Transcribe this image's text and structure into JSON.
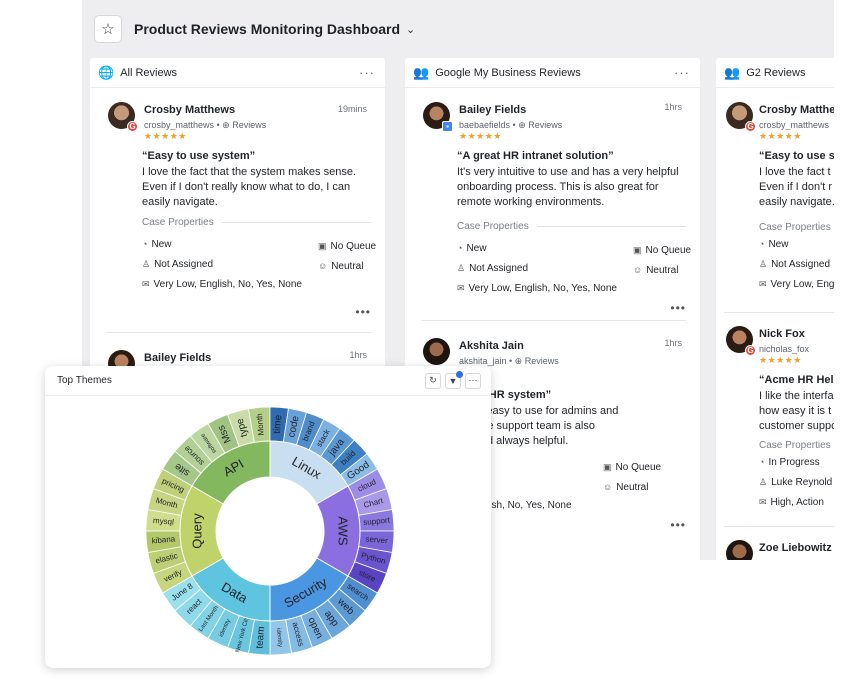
{
  "dashboard": {
    "title": "Product Reviews Monitoring Dashboard"
  },
  "columns": [
    {
      "title": "All Reviews",
      "cards": [
        {
          "name": "Crosby Matthews",
          "handle": "crosby_matthews",
          "source": "Reviews",
          "time": "19mins",
          "rating": 5,
          "review_title": "“Easy to use system”",
          "review_body": "I love the fact that the system makes sense. Even if I don't really know what to do, I can easily navigate.",
          "case_properties_label": "Case Properties",
          "status": "New",
          "queue": "No Queue",
          "assignee": "Not Assigned",
          "sentiment": "Neutral",
          "tags": "Very Low, English, No, Yes, None"
        },
        {
          "name": "Bailey Fields",
          "time": "1hrs"
        }
      ]
    },
    {
      "title": "Google My Business Reviews",
      "cards": [
        {
          "name": "Bailey Fields",
          "handle": "baebaefields",
          "source": "Reviews",
          "time": "1hrs",
          "rating": 5,
          "review_title": "“A great HR intranet solution”",
          "review_body": "It's very intuitive to use and has a very helpful onboarding process.  This is also great for remote working environments.",
          "case_properties_label": "Case Properties",
          "status": "New",
          "queue": "No Queue",
          "assignee": "Not Assigned",
          "sentiment": "Neutral",
          "tags": "Very Low, English, No, Yes, None"
        },
        {
          "name": "Akshita Jain",
          "handle": "akshita_jain",
          "source": "Reviews",
          "time": "1hrs",
          "review_title_visible": "endly HR system”",
          "review_body_lines": [
            "em is easy to use for admins and",
            "es. The support team is also",
            "ing and always helpful."
          ],
          "queue": "No Queue",
          "assignee_visible": "signed",
          "sentiment": "Neutral",
          "tags_visible": "w, English, No, Yes, None"
        }
      ]
    },
    {
      "title": "G2 Reviews",
      "cards": [
        {
          "name": "Crosby Matthe",
          "handle": "crosby_matthews",
          "rating": 5,
          "review_title": "“Easy to use s",
          "review_body_lines": [
            "I love the fact t",
            "Even if I don't r",
            "easily navigate."
          ],
          "case_properties_label": "Case Properties",
          "status": "New",
          "assignee": "Not Assigned",
          "tags": "Very Low, Eng"
        },
        {
          "name": "Nick Fox",
          "handle": "nicholas_fox",
          "rating": 5,
          "review_title": "“Acme HR Help",
          "review_body_lines": [
            "I like the interfa",
            "how easy it is t",
            "customer suppo"
          ],
          "case_properties_label": "Case Properties",
          "status": "In Progress",
          "assignee": "Luke Reynold",
          "tags": "High, Action"
        },
        {
          "name": "Zoe Liebowitz"
        }
      ]
    }
  ],
  "top_themes": {
    "title": "Top Themes",
    "inner": [
      "API",
      "Linux",
      "AWS",
      "Security",
      "Data",
      "Query"
    ],
    "outer": {
      "api": [
        "site",
        "source",
        "software",
        "Mss",
        "type",
        "Month"
      ],
      "linux": [
        "time",
        "code",
        "brand",
        "stack",
        "java",
        "build",
        "Good"
      ],
      "aws": [
        "cloud",
        "Chart",
        "support",
        "server",
        "Python",
        "store"
      ],
      "security": [
        "search",
        "web",
        "app",
        "open",
        "access",
        "identity"
      ],
      "data": [
        "team",
        "New York City",
        "identity",
        "Last Month",
        "react",
        "June 8"
      ],
      "query": [
        "verify",
        "elastic",
        "kibana",
        "mysql",
        "Month",
        "pricing"
      ]
    }
  }
}
